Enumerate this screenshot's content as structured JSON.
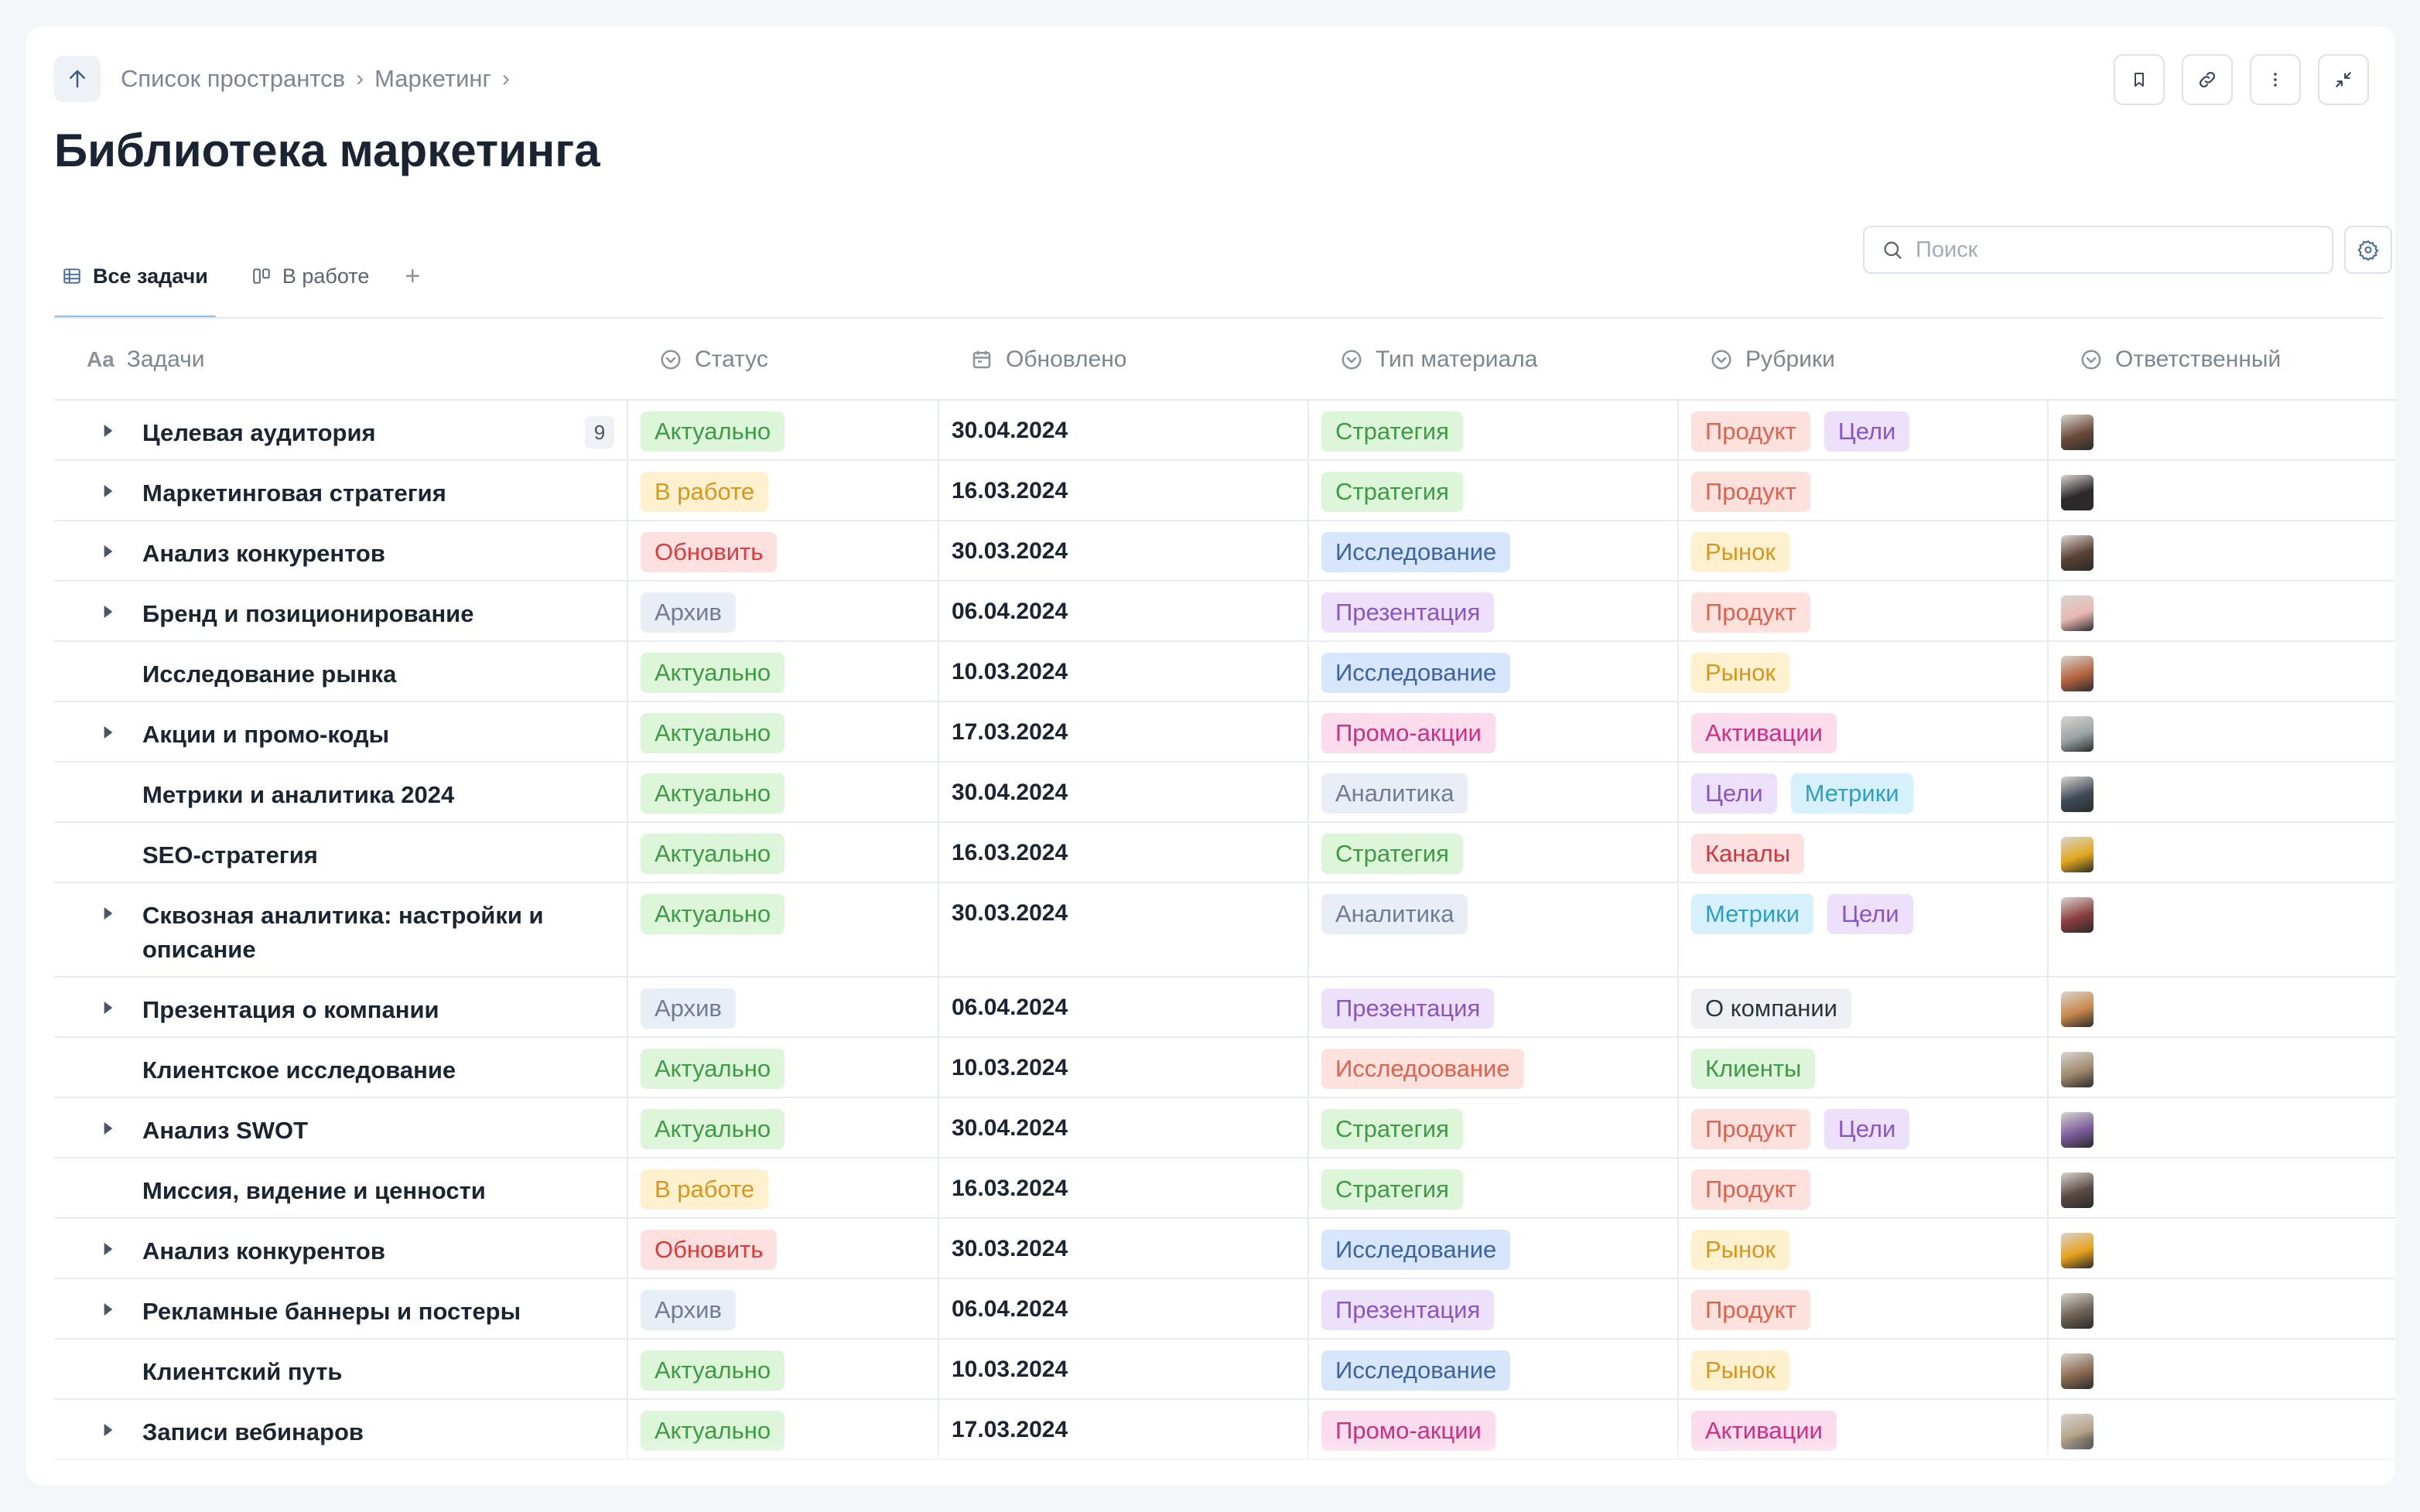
{
  "breadcrumb": {
    "items": [
      "Список пространтсв",
      "Маркетинг"
    ]
  },
  "page_title": "Библиотека маркетинга",
  "tabs": [
    {
      "label": "Все задачи",
      "active": true
    },
    {
      "label": "В работе",
      "active": false
    }
  ],
  "search": {
    "placeholder": "Поиск",
    "value": ""
  },
  "columns": [
    "Задачи",
    "Статус",
    "Обновлено",
    "Тип материала",
    "Рубрики",
    "Ответственный"
  ],
  "tag_colors": {
    "Актуально": {
      "bg": "#ddf5d9",
      "fg": "#3e9b45"
    },
    "В работе": {
      "bg": "#fff1cf",
      "fg": "#d99619"
    },
    "Обновить": {
      "bg": "#fde0e0",
      "fg": "#dc3b3b"
    },
    "Архив": {
      "bg": "#e8edf6",
      "fg": "#6f7c93"
    },
    "Стратегия": {
      "bg": "#ddf5d9",
      "fg": "#3e9b45"
    },
    "Исследование": {
      "bg": "#d7e6fb",
      "fg": "#3c63a6"
    },
    "Презентация": {
      "bg": "#ece0fa",
      "fg": "#8a55c2"
    },
    "Промо-акции": {
      "bg": "#fbdcec",
      "fg": "#cc2f84"
    },
    "Аналитика": {
      "bg": "#e8edf6",
      "fg": "#6f7c93"
    },
    "Исследоование": {
      "bg": "#fde1dc",
      "fg": "#e0614d"
    },
    "Продукт": {
      "bg": "#fde1dc",
      "fg": "#e0614d"
    },
    "Цели": {
      "bg": "#ece0fa",
      "fg": "#8a55c2"
    },
    "Рынок": {
      "bg": "#fff1cf",
      "fg": "#d99619"
    },
    "Активации": {
      "bg": "#fbdcec",
      "fg": "#cc2f84"
    },
    "Метрики": {
      "bg": "#d6f1fb",
      "fg": "#2e9ec9"
    },
    "Каналы": {
      "bg": "#fde0e0",
      "fg": "#d3353c"
    },
    "О компании": {
      "bg": "#eef0f3",
      "fg": "#2a3340"
    },
    "Клиенты": {
      "bg": "#ddf5d9",
      "fg": "#3e9b45"
    }
  },
  "rows": [
    {
      "task": "Целевая аудитория",
      "expandable": true,
      "count": "9",
      "status": "Актуально",
      "updated": "30.04.2024",
      "type": "Стратегия",
      "rubrics": [
        "Продукт",
        "Цели"
      ],
      "avatar": "#6d4c3b"
    },
    {
      "task": "Маркетинговая стратегия",
      "expandable": true,
      "status": "В работе",
      "updated": "16.03.2024",
      "type": "Стратегия",
      "rubrics": [
        "Продукт"
      ],
      "avatar": "#2e2a2c"
    },
    {
      "task": "Анализ конкурентов",
      "expandable": true,
      "status": "Обновить",
      "updated": "30.03.2024",
      "type": "Исследование",
      "rubrics": [
        "Рынок"
      ],
      "avatar": "#5a4033"
    },
    {
      "task": "Бренд и позиционирование",
      "expandable": true,
      "status": "Архив",
      "updated": "06.04.2024",
      "type": "Презентация",
      "rubrics": [
        "Продукт"
      ],
      "avatar": "#e9b7b3"
    },
    {
      "task": "Исследование рынка",
      "expandable": false,
      "status": "Актуально",
      "updated": "10.03.2024",
      "type": "Исследование",
      "rubrics": [
        "Рынок"
      ],
      "avatar": "#b5643f"
    },
    {
      "task": "Акции и промо-коды",
      "expandable": true,
      "status": "Актуально",
      "updated": "17.03.2024",
      "type": "Промо-акции",
      "rubrics": [
        "Активации"
      ],
      "avatar": "#9aa3a4"
    },
    {
      "task": "Метрики и аналитика 2024",
      "expandable": false,
      "status": "Актуально",
      "updated": "30.04.2024",
      "type": "Аналитика",
      "rubrics": [
        "Цели",
        "Метрики"
      ],
      "avatar": "#3f4b57"
    },
    {
      "task": "SEO-стратегия",
      "expandable": false,
      "status": "Актуально",
      "updated": "16.03.2024",
      "type": "Стратегия",
      "rubrics": [
        "Каналы"
      ],
      "avatar": "#e2a91e"
    },
    {
      "task": "Сквозная аналитика: настройки и описание",
      "expandable": true,
      "status": "Актуально",
      "updated": "30.03.2024",
      "type": "Аналитика",
      "rubrics": [
        "Метрики",
        "Цели"
      ],
      "avatar": "#8c3e3e"
    },
    {
      "task": "Презентация о компании",
      "expandable": true,
      "status": "Архив",
      "updated": "06.04.2024",
      "type": "Презентация",
      "rubrics": [
        "О компании"
      ],
      "avatar": "#c98a4a"
    },
    {
      "task": "Клиентское исследование",
      "expandable": false,
      "status": "Актуально",
      "updated": "10.03.2024",
      "type": "Исследоование",
      "rubrics": [
        "Клиенты"
      ],
      "avatar": "#a08a6e"
    },
    {
      "task": "Анализ SWOT",
      "expandable": true,
      "status": "Актуально",
      "updated": "30.04.2024",
      "type": "Стратегия",
      "rubrics": [
        "Продукт",
        "Цели"
      ],
      "avatar": "#7a5b9c"
    },
    {
      "task": "Миссия, видение и ценности",
      "expandable": false,
      "status": "В работе",
      "updated": "16.03.2024",
      "type": "Стратегия",
      "rubrics": [
        "Продукт"
      ],
      "avatar": "#5c4a44"
    },
    {
      "task": "Анализ конкурентов",
      "expandable": true,
      "status": "Обновить",
      "updated": "30.03.2024",
      "type": "Исследование",
      "rubrics": [
        "Рынок"
      ],
      "avatar": "#e8a21c"
    },
    {
      "task": "Рекламные баннеры и постеры",
      "expandable": true,
      "status": "Архив",
      "updated": "06.04.2024",
      "type": "Презентация",
      "rubrics": [
        "Продукт"
      ],
      "avatar": "#6e6254"
    },
    {
      "task": "Клиентский путь",
      "expandable": false,
      "status": "Актуально",
      "updated": "10.03.2024",
      "type": "Исследование",
      "rubrics": [
        "Рынок"
      ],
      "avatar": "#8d6b52"
    },
    {
      "task": "Записи вебинаров",
      "expandable": true,
      "status": "Актуально",
      "updated": "17.03.2024",
      "type": "Промо-акции",
      "rubrics": [
        "Активации"
      ],
      "avatar": "#b5a48c"
    }
  ]
}
